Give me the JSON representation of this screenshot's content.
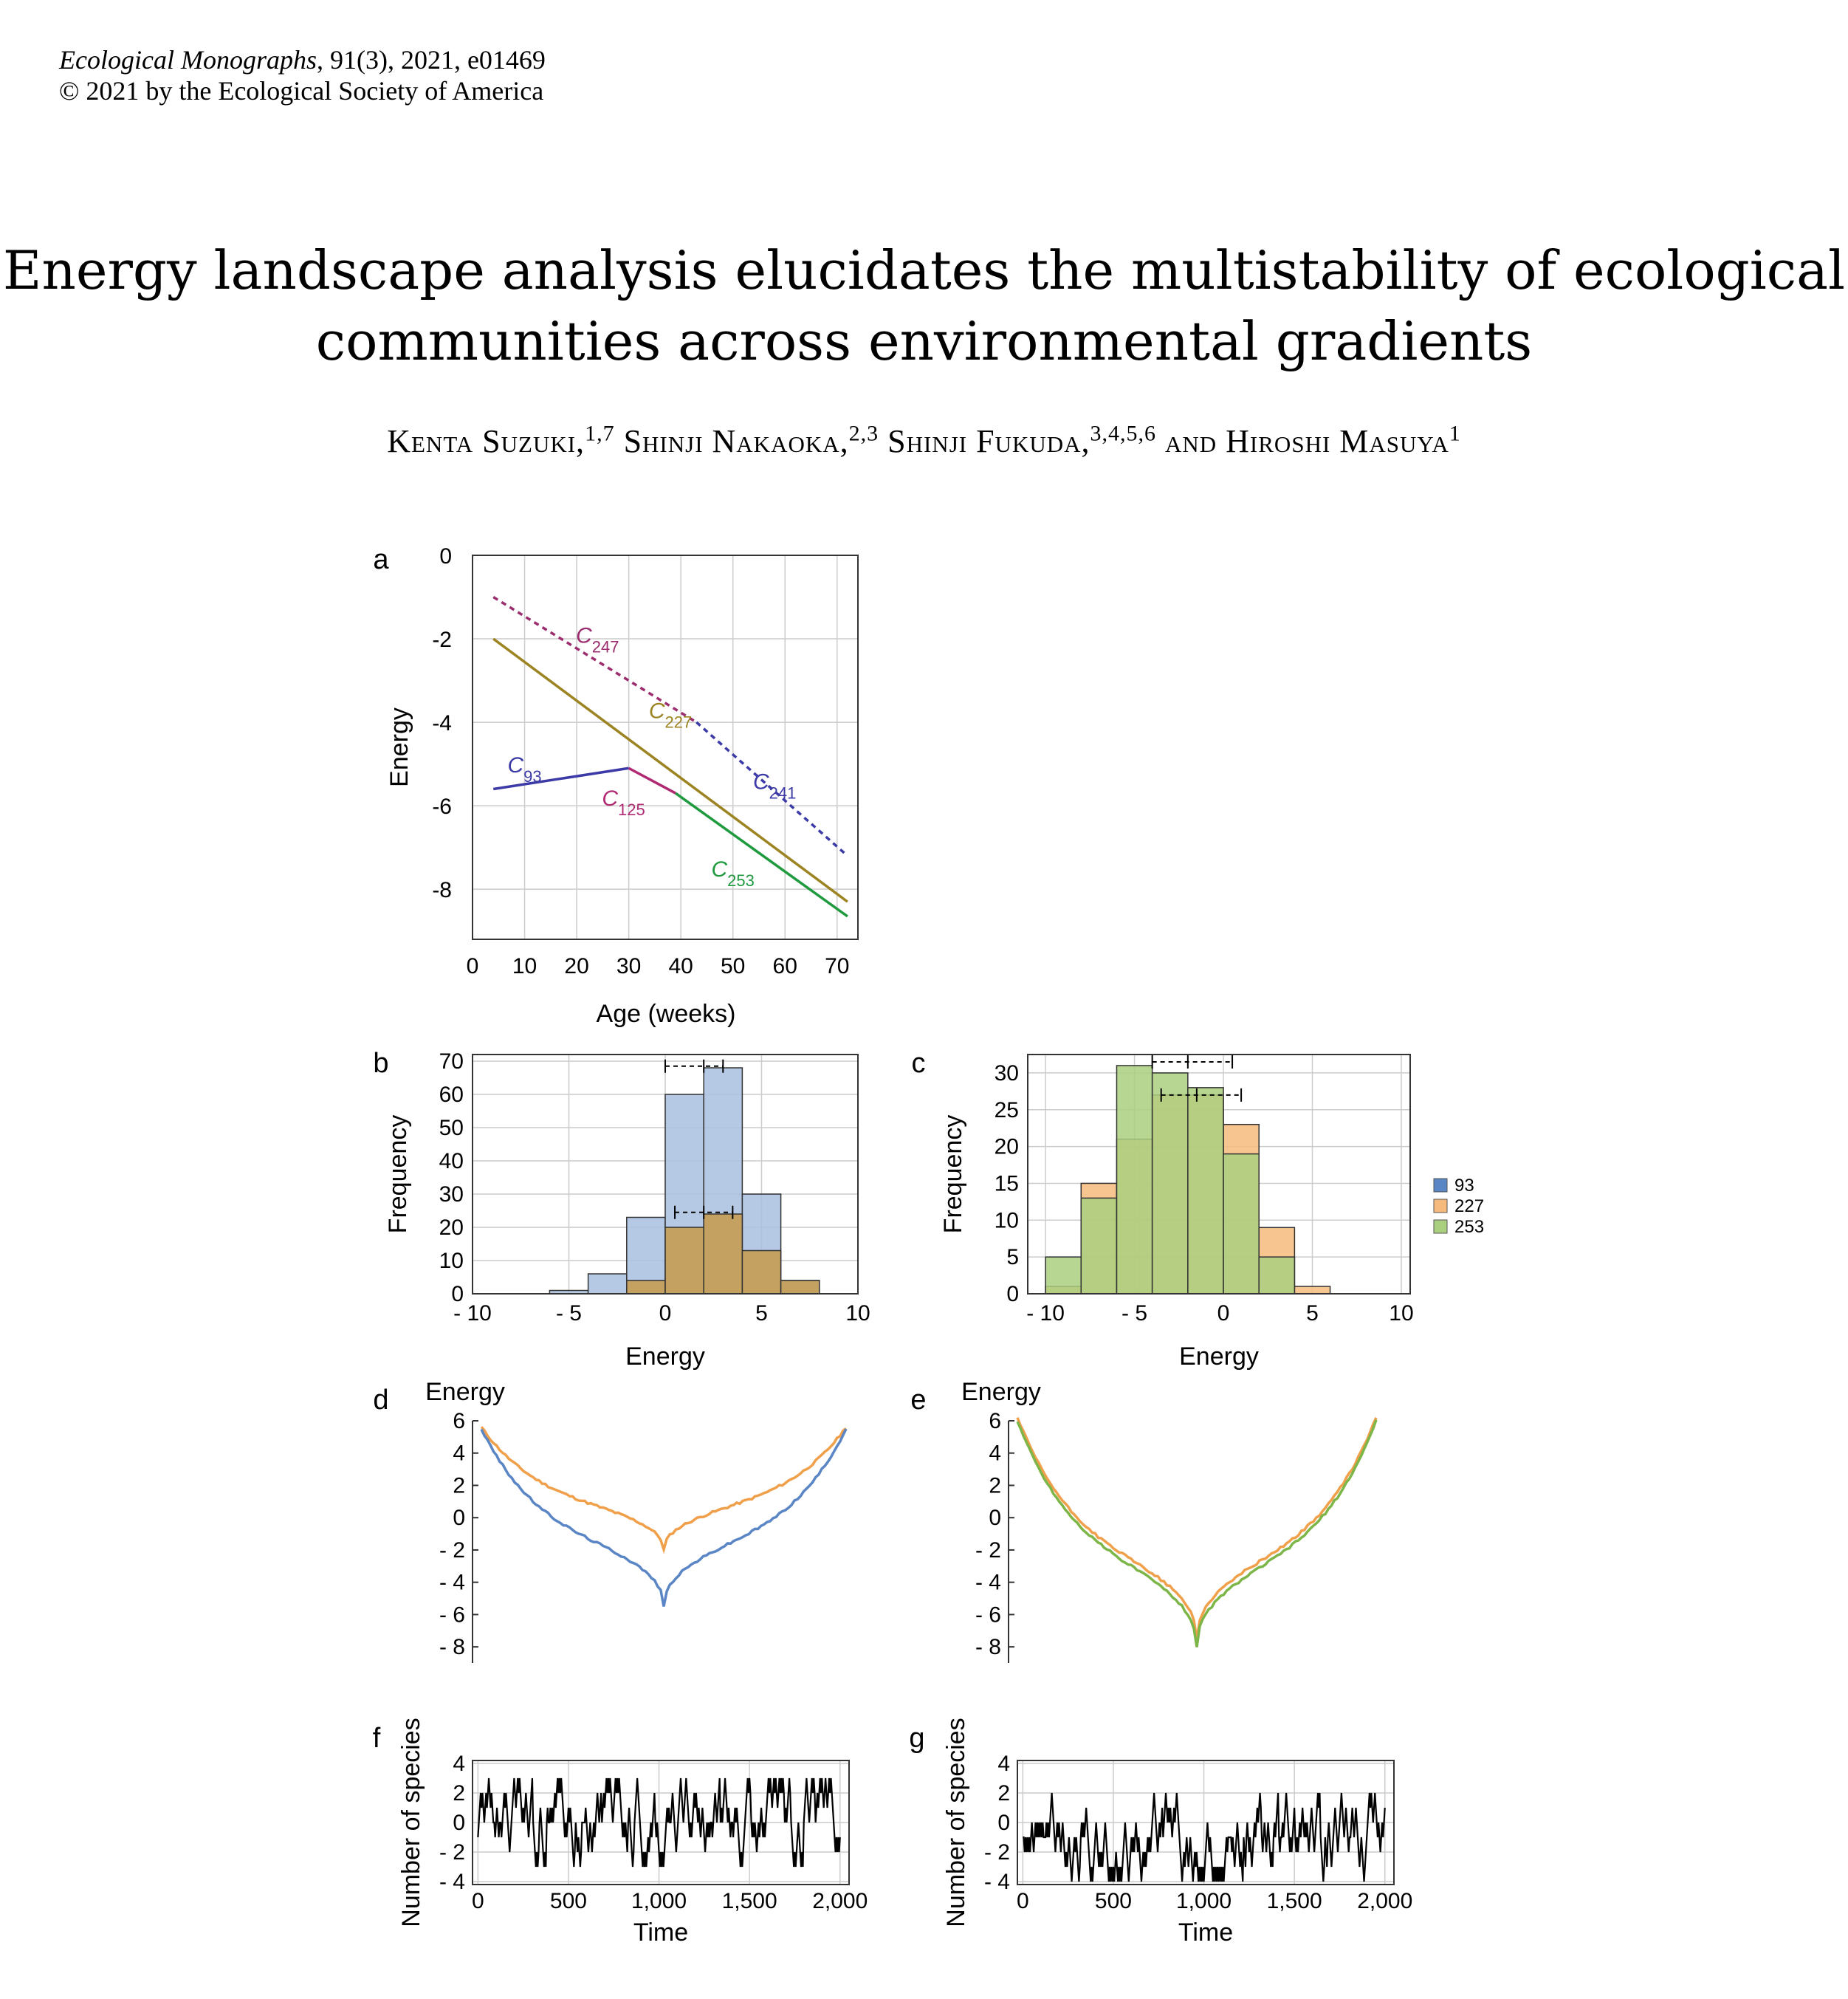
{
  "journal": {
    "name": "Ecological Monographs",
    "citation": ", 91(3), 2021, e01469",
    "copyright": "© 2021 by the Ecological Society of America"
  },
  "title": {
    "line1": "Energy landscape analysis elucidates the multistability of ecological",
    "line2": "communities across environmental gradients"
  },
  "authors": [
    {
      "name": "Kenta Suzuki,",
      "sup": "1,7"
    },
    {
      "name": "Shinji Nakaoka,",
      "sup": "2,3"
    },
    {
      "name": "Shinji Fukuda,",
      "sup": "3,4,5,6"
    },
    {
      "name": "and Hiroshi Masuya",
      "sup": "1"
    }
  ],
  "colors": {
    "blue": "#5b86c5",
    "orange": "#f0a04b",
    "green": "#7db648",
    "olive": "#a58a2a",
    "c247": "#9b2d6e",
    "c241": "#3c3aa6",
    "c93": "#3c3aa6",
    "c125": "#b02a73",
    "c227": "#9c8423",
    "c253": "#1f9a3e",
    "hist_b_blue": "#a8bfe0",
    "hist_b_orange": "#c79a4a",
    "hist_c_green": "#a9cf7f",
    "hist_c_orange": "#f6bb7c",
    "hist_c_olive": "#aab62e"
  },
  "chart_data": [
    {
      "panel": "a",
      "type": "line",
      "xlabel": "Age (weeks)",
      "ylabel": "Energy",
      "xlim": [
        0,
        74
      ],
      "ylim": [
        -9.2,
        0
      ],
      "xticks": [
        0,
        10,
        20,
        30,
        40,
        50,
        60,
        70
      ],
      "yticks": [
        0,
        -2,
        -4,
        -6,
        -8
      ],
      "series": [
        {
          "name": "C247",
          "sub": "247",
          "style": "dashed",
          "color_key": "c247",
          "points": [
            [
              4,
              -1
            ],
            [
              43,
              -4
            ]
          ]
        },
        {
          "name": "C241",
          "sub": "241",
          "style": "dashed",
          "color_key": "c241",
          "points": [
            [
              43,
              -4
            ],
            [
              72,
              -7.2
            ]
          ]
        },
        {
          "name": "C227",
          "sub": "227",
          "style": "solid",
          "color_key": "c227",
          "points": [
            [
              4,
              -2
            ],
            [
              72,
              -8.3
            ]
          ]
        },
        {
          "name": "C93",
          "sub": "93",
          "style": "solid",
          "color_key": "c93",
          "points": [
            [
              4,
              -5.6
            ],
            [
              30,
              -5.1
            ]
          ]
        },
        {
          "name": "C125",
          "sub": "125",
          "style": "solid",
          "color_key": "c125",
          "points": [
            [
              30,
              -5.1
            ],
            [
              39,
              -5.7
            ]
          ]
        },
        {
          "name": "C253",
          "sub": "253",
          "style": "solid",
          "color_key": "c253",
          "points": [
            [
              39,
              -5.7
            ],
            [
              72,
              -8.65
            ]
          ]
        }
      ],
      "labels": [
        {
          "text": "C",
          "sub": "247",
          "x": 24,
          "y": -2.1,
          "color_key": "c247"
        },
        {
          "text": "C",
          "sub": "227",
          "x": 38,
          "y": -3.9,
          "color_key": "c227"
        },
        {
          "text": "C",
          "sub": "241",
          "x": 58,
          "y": -5.6,
          "color_key": "c241"
        },
        {
          "text": "C",
          "sub": "93",
          "x": 10,
          "y": -5.2,
          "color_key": "c93"
        },
        {
          "text": "C",
          "sub": "125",
          "x": 29,
          "y": -6.0,
          "color_key": "c125"
        },
        {
          "text": "C",
          "sub": "253",
          "x": 50,
          "y": -7.7,
          "color_key": "c253"
        }
      ]
    },
    {
      "panel": "b",
      "type": "bar",
      "xlabel": "Energy",
      "ylabel": "Frequency",
      "xlim": [
        -10,
        10
      ],
      "ylim": [
        0,
        72
      ],
      "xticks": [
        -10,
        -5,
        0,
        5,
        10
      ],
      "xticklabels": [
        "- 10",
        "- 5",
        "0",
        "5",
        "10"
      ],
      "yticks": [
        0,
        10,
        20,
        30,
        40,
        50,
        60,
        70
      ],
      "bin_edges": [
        -8,
        -6,
        -4,
        -2,
        0,
        2,
        4,
        6,
        8
      ],
      "series": [
        {
          "name": "93",
          "color_key": "hist_b_blue",
          "values": [
            0,
            1,
            6,
            23,
            60,
            68,
            30,
            4
          ]
        },
        {
          "name": "227",
          "color_key": "hist_b_orange",
          "values": [
            0,
            0,
            0,
            4,
            20,
            24,
            13,
            4
          ]
        }
      ],
      "errorbars": [
        {
          "y": 68.5,
          "x0": 0,
          "x1": 3,
          "mid": 2,
          "style": "dashed"
        },
        {
          "y": 24.5,
          "x0": 0.5,
          "x1": 3.5,
          "mid": 2,
          "style": "dashed"
        }
      ]
    },
    {
      "panel": "c",
      "type": "bar",
      "xlabel": "Energy",
      "ylabel": "Frequency",
      "xlim": [
        -11,
        10.5
      ],
      "ylim": [
        0,
        32.5
      ],
      "xticks": [
        -10,
        -5,
        0,
        5,
        10
      ],
      "xticklabels": [
        "- 10",
        "- 5",
        "0",
        "5",
        "10"
      ],
      "yticks": [
        0,
        5,
        10,
        15,
        20,
        25,
        30
      ],
      "bin_edges": [
        -10,
        -8,
        -6,
        -4,
        -2,
        0,
        2,
        4,
        6,
        8
      ],
      "series": [
        {
          "name": "93",
          "color_key": "blue",
          "values": [
            0,
            0,
            0,
            0,
            0,
            0,
            0,
            0,
            0
          ]
        },
        {
          "name": "227",
          "color_key": "hist_c_orange",
          "values": [
            1,
            15,
            21,
            27,
            27,
            23,
            9,
            1,
            0
          ]
        },
        {
          "name": "253",
          "color_key": "hist_c_green",
          "values": [
            5,
            13,
            31,
            30,
            28,
            19,
            5,
            0,
            0
          ]
        }
      ],
      "errorbars": [
        {
          "y": 31.5,
          "x0": -4,
          "x1": 0.5,
          "mid": -2,
          "style": "dashed"
        },
        {
          "y": 27,
          "x0": -3.5,
          "x1": 1,
          "mid": -1.5,
          "style": "dashed"
        }
      ],
      "legend": [
        "93",
        "227",
        "253"
      ]
    },
    {
      "panel": "d",
      "type": "line",
      "title": "Energy",
      "ylim": [
        -9,
        6
      ],
      "yticks": [
        6,
        4,
        2,
        0,
        -2,
        -4,
        -6,
        -8
      ],
      "yticklabels": [
        "6",
        "4",
        "2",
        "0",
        "- 2",
        "- 4",
        "- 6",
        "- 8"
      ],
      "series": [
        {
          "name": "orange",
          "color_key": "orange",
          "min": -2.0,
          "max": 5.6
        },
        {
          "name": "blue",
          "color_key": "blue",
          "min": -5.5,
          "max": 5.5
        }
      ]
    },
    {
      "panel": "e",
      "type": "line",
      "title": "Energy",
      "ylim": [
        -9,
        6
      ],
      "yticks": [
        6,
        4,
        2,
        0,
        -2,
        -4,
        -6,
        -8
      ],
      "yticklabels": [
        "6",
        "4",
        "2",
        "0",
        "- 2",
        "- 4",
        "- 6",
        "- 8"
      ],
      "series": [
        {
          "name": "orange",
          "color_key": "orange",
          "min": -7.5,
          "max": 6.2
        },
        {
          "name": "green",
          "color_key": "green",
          "min": -8.0,
          "max": 6.0
        }
      ]
    },
    {
      "panel": "f",
      "type": "line",
      "xlabel": "Time",
      "ylabel": "Number of species",
      "xlim": [
        -30,
        2050
      ],
      "ylim": [
        -4.2,
        4.2
      ],
      "xticks": [
        0,
        500,
        1000,
        1500,
        2000
      ],
      "xticklabels": [
        "0",
        "500",
        "1,000",
        "1,500",
        "2,000"
      ],
      "yticks": [
        4,
        2,
        0,
        -2,
        -4
      ],
      "yticklabels": [
        "4",
        "2",
        "0",
        "- 2",
        "- 4"
      ],
      "series": [
        {
          "name": "walk",
          "color": "#000000",
          "range": [
            -3,
            3
          ],
          "bias": 0.0
        }
      ]
    },
    {
      "panel": "g",
      "type": "line",
      "xlabel": "Time",
      "ylabel": "Number of species",
      "xlim": [
        -30,
        2050
      ],
      "ylim": [
        -4.2,
        4.2
      ],
      "xticks": [
        0,
        500,
        1000,
        1500,
        2000
      ],
      "xticklabels": [
        "0",
        "500",
        "1,000",
        "1,500",
        "2,000"
      ],
      "yticks": [
        4,
        2,
        0,
        -2,
        -4
      ],
      "yticklabels": [
        "4",
        "2",
        "0",
        "- 2",
        "- 4"
      ],
      "series": [
        {
          "name": "walk",
          "color": "#000000",
          "range": [
            -4,
            2
          ],
          "bias": -1.0
        }
      ]
    }
  ],
  "panel_labels": [
    "a",
    "b",
    "c",
    "d",
    "e",
    "f",
    "g"
  ]
}
